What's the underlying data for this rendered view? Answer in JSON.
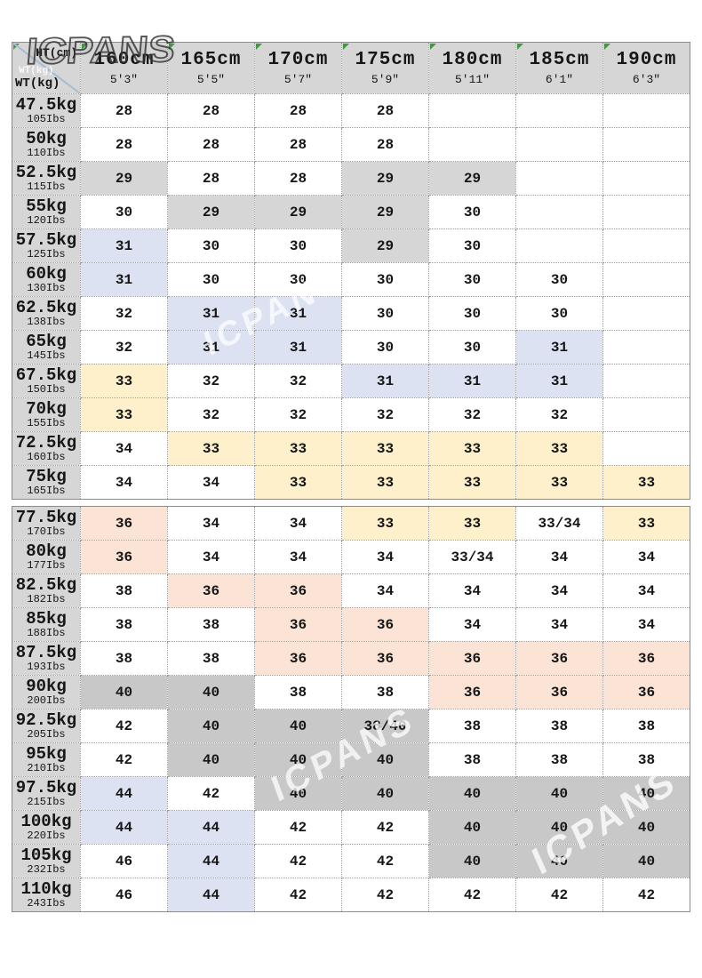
{
  "brand": "ICPANS",
  "corner": {
    "top": "HT(cm)",
    "ghost": "WT(kg)",
    "bottom": "WT(kg)"
  },
  "columns": [
    {
      "cm": "160cm",
      "ft": "5'3\""
    },
    {
      "cm": "165cm",
      "ft": "5'5\""
    },
    {
      "cm": "170cm",
      "ft": "5'7\""
    },
    {
      "cm": "175cm",
      "ft": "5'9\""
    },
    {
      "cm": "180cm",
      "ft": "5'11\""
    },
    {
      "cm": "185cm",
      "ft": "6'1\""
    },
    {
      "cm": "190cm",
      "ft": "6'3\""
    }
  ],
  "rows": [
    {
      "kg": "47.5kg",
      "lbs": "105Ibs",
      "cells": [
        [
          "28",
          "w"
        ],
        [
          "28",
          "w"
        ],
        [
          "28",
          "w"
        ],
        [
          "28",
          "w"
        ],
        [
          "",
          "w"
        ],
        [
          "",
          "w"
        ],
        [
          "",
          "w"
        ]
      ]
    },
    {
      "kg": "50kg",
      "lbs": "110Ibs",
      "cells": [
        [
          "28",
          "w"
        ],
        [
          "28",
          "w"
        ],
        [
          "28",
          "w"
        ],
        [
          "28",
          "w"
        ],
        [
          "",
          "w"
        ],
        [
          "",
          "w"
        ],
        [
          "",
          "w"
        ]
      ]
    },
    {
      "kg": "52.5kg",
      "lbs": "115Ibs",
      "cells": [
        [
          "29",
          "g"
        ],
        [
          "28",
          "w"
        ],
        [
          "28",
          "w"
        ],
        [
          "29",
          "g"
        ],
        [
          "29",
          "g"
        ],
        [
          "",
          "w"
        ],
        [
          "",
          "w"
        ]
      ]
    },
    {
      "kg": "55kg",
      "lbs": "120Ibs",
      "cells": [
        [
          "30",
          "w"
        ],
        [
          "29",
          "g"
        ],
        [
          "29",
          "g"
        ],
        [
          "29",
          "g"
        ],
        [
          "30",
          "w"
        ],
        [
          "",
          "w"
        ],
        [
          "",
          "w"
        ]
      ]
    },
    {
      "kg": "57.5kg",
      "lbs": "125Ibs",
      "cells": [
        [
          "31",
          "b"
        ],
        [
          "30",
          "w"
        ],
        [
          "30",
          "w"
        ],
        [
          "29",
          "g"
        ],
        [
          "30",
          "w"
        ],
        [
          "",
          "w"
        ],
        [
          "",
          "w"
        ]
      ]
    },
    {
      "kg": "60kg",
      "lbs": "130Ibs",
      "cells": [
        [
          "31",
          "b"
        ],
        [
          "30",
          "w"
        ],
        [
          "30",
          "w"
        ],
        [
          "30",
          "w"
        ],
        [
          "30",
          "w"
        ],
        [
          "30",
          "w"
        ],
        [
          "",
          "w"
        ]
      ]
    },
    {
      "kg": "62.5kg",
      "lbs": "138Ibs",
      "cells": [
        [
          "32",
          "w"
        ],
        [
          "31",
          "b"
        ],
        [
          "31",
          "b"
        ],
        [
          "30",
          "w"
        ],
        [
          "30",
          "w"
        ],
        [
          "30",
          "w"
        ],
        [
          "",
          "w"
        ]
      ]
    },
    {
      "kg": "65kg",
      "lbs": "145Ibs",
      "cells": [
        [
          "32",
          "w"
        ],
        [
          "31",
          "b"
        ],
        [
          "31",
          "b"
        ],
        [
          "30",
          "w"
        ],
        [
          "30",
          "w"
        ],
        [
          "31",
          "b"
        ],
        [
          "",
          "w"
        ]
      ]
    },
    {
      "kg": "67.5kg",
      "lbs": "150Ibs",
      "cells": [
        [
          "33",
          "y"
        ],
        [
          "32",
          "w"
        ],
        [
          "32",
          "w"
        ],
        [
          "31",
          "b"
        ],
        [
          "31",
          "b"
        ],
        [
          "31",
          "b"
        ],
        [
          "",
          "w"
        ]
      ]
    },
    {
      "kg": "70kg",
      "lbs": "155Ibs",
      "cells": [
        [
          "33",
          "y"
        ],
        [
          "32",
          "w"
        ],
        [
          "32",
          "w"
        ],
        [
          "32",
          "w"
        ],
        [
          "32",
          "w"
        ],
        [
          "32",
          "w"
        ],
        [
          "",
          "w"
        ]
      ]
    },
    {
      "kg": "72.5kg",
      "lbs": "160Ibs",
      "cells": [
        [
          "34",
          "w"
        ],
        [
          "33",
          "y"
        ],
        [
          "33",
          "y"
        ],
        [
          "33",
          "y"
        ],
        [
          "33",
          "y"
        ],
        [
          "33",
          "y"
        ],
        [
          "",
          "w"
        ]
      ]
    },
    {
      "kg": "75kg",
      "lbs": "165Ibs",
      "cells": [
        [
          "34",
          "w"
        ],
        [
          "34",
          "w"
        ],
        [
          "33",
          "y"
        ],
        [
          "33",
          "y"
        ],
        [
          "33",
          "y"
        ],
        [
          "33",
          "y"
        ],
        [
          "33",
          "y"
        ]
      ]
    },
    {
      "kg": "77.5kg",
      "lbs": "170Ibs",
      "cells": [
        [
          "36",
          "p"
        ],
        [
          "34",
          "w"
        ],
        [
          "34",
          "w"
        ],
        [
          "33",
          "y"
        ],
        [
          "33",
          "y"
        ],
        [
          "33/34",
          "w"
        ],
        [
          "33",
          "y"
        ]
      ]
    },
    {
      "kg": "80kg",
      "lbs": "177Ibs",
      "cells": [
        [
          "36",
          "p"
        ],
        [
          "34",
          "w"
        ],
        [
          "34",
          "w"
        ],
        [
          "34",
          "w"
        ],
        [
          "33/34",
          "w"
        ],
        [
          "34",
          "w"
        ],
        [
          "34",
          "w"
        ]
      ]
    },
    {
      "kg": "82.5kg",
      "lbs": "182Ibs",
      "cells": [
        [
          "38",
          "w"
        ],
        [
          "36",
          "p"
        ],
        [
          "36",
          "p"
        ],
        [
          "34",
          "w"
        ],
        [
          "34",
          "w"
        ],
        [
          "34",
          "w"
        ],
        [
          "34",
          "w"
        ]
      ]
    },
    {
      "kg": "85kg",
      "lbs": "188Ibs",
      "cells": [
        [
          "38",
          "w"
        ],
        [
          "38",
          "w"
        ],
        [
          "36",
          "p"
        ],
        [
          "36",
          "p"
        ],
        [
          "34",
          "w"
        ],
        [
          "34",
          "w"
        ],
        [
          "34",
          "w"
        ]
      ]
    },
    {
      "kg": "87.5kg",
      "lbs": "193Ibs",
      "cells": [
        [
          "38",
          "w"
        ],
        [
          "38",
          "w"
        ],
        [
          "36",
          "p"
        ],
        [
          "36",
          "p"
        ],
        [
          "36",
          "p"
        ],
        [
          "36",
          "p"
        ],
        [
          "36",
          "p"
        ]
      ]
    },
    {
      "kg": "90kg",
      "lbs": "200Ibs",
      "cells": [
        [
          "40",
          "G"
        ],
        [
          "40",
          "G"
        ],
        [
          "38",
          "w"
        ],
        [
          "38",
          "w"
        ],
        [
          "36",
          "p"
        ],
        [
          "36",
          "p"
        ],
        [
          "36",
          "p"
        ]
      ]
    },
    {
      "kg": "92.5kg",
      "lbs": "205Ibs",
      "cells": [
        [
          "42",
          "w"
        ],
        [
          "40",
          "G"
        ],
        [
          "40",
          "G"
        ],
        [
          "38/40",
          "G"
        ],
        [
          "38",
          "w"
        ],
        [
          "38",
          "w"
        ],
        [
          "38",
          "w"
        ]
      ]
    },
    {
      "kg": "95kg",
      "lbs": "210Ibs",
      "cells": [
        [
          "42",
          "w"
        ],
        [
          "40",
          "G"
        ],
        [
          "40",
          "G"
        ],
        [
          "40",
          "G"
        ],
        [
          "38",
          "w"
        ],
        [
          "38",
          "w"
        ],
        [
          "38",
          "w"
        ]
      ]
    },
    {
      "kg": "97.5kg",
      "lbs": "215Ibs",
      "cells": [
        [
          "44",
          "b"
        ],
        [
          "42",
          "w"
        ],
        [
          "40",
          "G"
        ],
        [
          "40",
          "G"
        ],
        [
          "40",
          "G"
        ],
        [
          "40",
          "G"
        ],
        [
          "40",
          "G"
        ]
      ]
    },
    {
      "kg": "100kg",
      "lbs": "220Ibs",
      "cells": [
        [
          "44",
          "b"
        ],
        [
          "44",
          "b"
        ],
        [
          "42",
          "w"
        ],
        [
          "42",
          "w"
        ],
        [
          "40",
          "G"
        ],
        [
          "40",
          "G"
        ],
        [
          "40",
          "G"
        ]
      ]
    },
    {
      "kg": "105kg",
      "lbs": "232Ibs",
      "cells": [
        [
          "46",
          "w"
        ],
        [
          "44",
          "b"
        ],
        [
          "42",
          "w"
        ],
        [
          "42",
          "w"
        ],
        [
          "40",
          "G"
        ],
        [
          "40",
          "G"
        ],
        [
          "40",
          "G"
        ]
      ]
    },
    {
      "kg": "110kg",
      "lbs": "243Ibs",
      "cells": [
        [
          "46",
          "w"
        ],
        [
          "44",
          "b"
        ],
        [
          "42",
          "w"
        ],
        [
          "42",
          "w"
        ],
        [
          "42",
          "w"
        ],
        [
          "42",
          "w"
        ],
        [
          "42",
          "w"
        ]
      ]
    }
  ],
  "split_after_row_index": 11,
  "colors": {
    "gray": "#d6d6d6",
    "dark_gray": "#c8c8c8",
    "blue": "#dce2f2",
    "yellow": "#fdf0cb",
    "pink": "#fbe4d5",
    "border": "#9a9a9a",
    "green_triangle": "#3b9c3b",
    "diagonal_line": "#a3bdd6"
  }
}
